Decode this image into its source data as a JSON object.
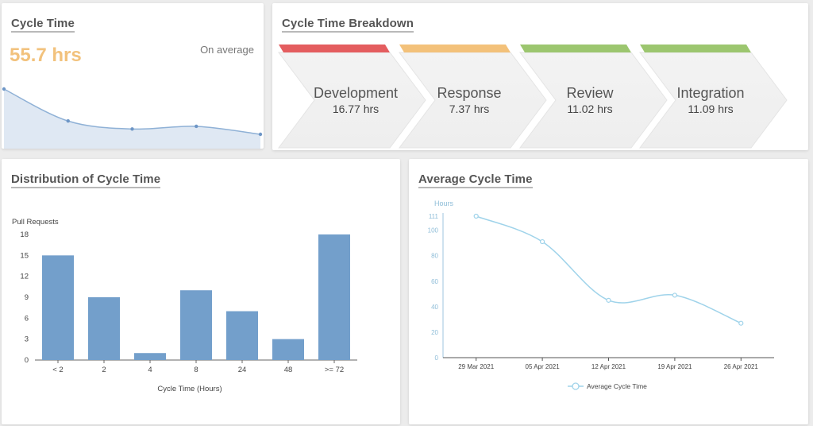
{
  "summary": {
    "title": "Cycle Time",
    "value": "55.7 hrs",
    "caption": "On average",
    "sparkline": [
      88,
      64,
      58,
      60,
      54
    ]
  },
  "breakdown": {
    "title": "Cycle Time Breakdown",
    "stages": [
      {
        "name": "Development",
        "value": "16.77 hrs",
        "color": "#e45d5f"
      },
      {
        "name": "Response",
        "value": "7.37 hrs",
        "color": "#f3c17a"
      },
      {
        "name": "Review",
        "value": "11.02 hrs",
        "color": "#9cc66f"
      },
      {
        "name": "Integration",
        "value": "11.09 hrs",
        "color": "#9cc66f"
      }
    ]
  },
  "distribution": {
    "title": "Distribution of Cycle Time"
  },
  "average": {
    "title": "Average Cycle Time"
  },
  "chart_data": [
    {
      "type": "bar",
      "title": "Distribution of Cycle Time",
      "categories": [
        "< 2",
        "2",
        "4",
        "8",
        "24",
        "48",
        ">= 72"
      ],
      "values": [
        15,
        9,
        1,
        10,
        7,
        3,
        18
      ],
      "ylabel": "Pull Requests",
      "xlabel": "Cycle Time (Hours)",
      "yticks": [
        0,
        3,
        6,
        9,
        12,
        15,
        18
      ],
      "ylim": [
        0,
        18
      ],
      "color": "#739fcb"
    },
    {
      "type": "line",
      "title": "Average Cycle Time",
      "categories": [
        "29 Mar 2021",
        "05 Apr 2021",
        "12 Apr 2021",
        "19 Apr 2021",
        "26 Apr 2021"
      ],
      "values": [
        111,
        91,
        45,
        49,
        27
      ],
      "ylabel": "Hours",
      "yticks": [
        0,
        20,
        40,
        60,
        80,
        100,
        111
      ],
      "ylim": [
        0,
        111
      ],
      "legend": "Average Cycle Time",
      "color": "#9fd3ea"
    }
  ]
}
